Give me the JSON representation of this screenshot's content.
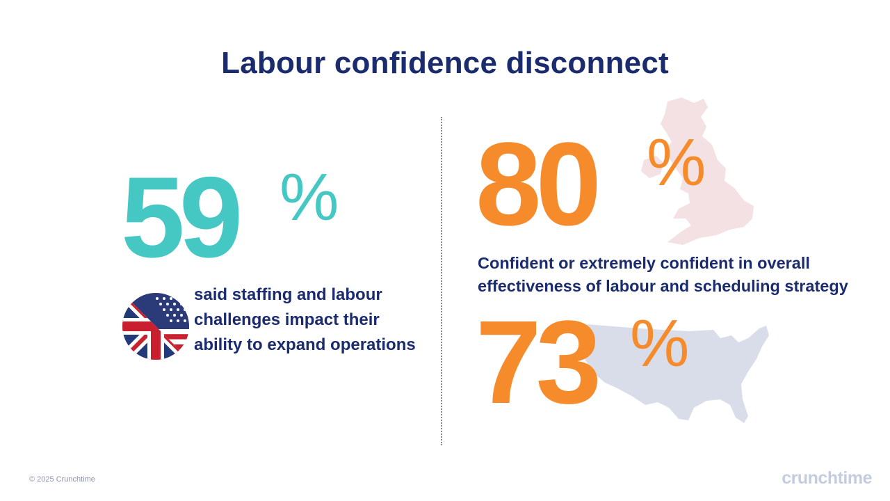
{
  "title": "Labour confidence disconnect",
  "left_stat": {
    "value": "59",
    "percent_sign": "%",
    "description": "said staffing and labour challenges impact their ability to expand operations",
    "color": "#45c8c4"
  },
  "right_stats": {
    "uk": {
      "value": "80",
      "percent_sign": "%",
      "description": "Confident or extremely confident in overall effectiveness of labour and scheduling strategy",
      "color": "#f68b2c",
      "map_icon": "uk-map-icon"
    },
    "us": {
      "value": "73",
      "percent_sign": "%",
      "color": "#f68b2c",
      "map_icon": "us-map-icon"
    }
  },
  "flag_icon": "uk-us-flag-icon",
  "footer": {
    "copyright": "© 2025 Crunchtime",
    "logo_text": "crunchtime"
  },
  "colors": {
    "navy": "#1a2b6e",
    "teal": "#45c8c4",
    "orange": "#f68b2c",
    "uk_map": "#f3e1e3",
    "us_map": "#d9dde9"
  }
}
